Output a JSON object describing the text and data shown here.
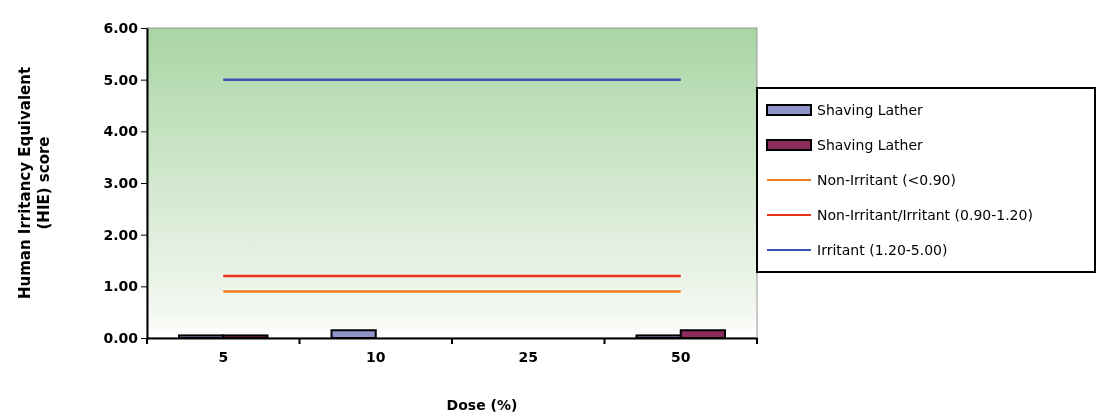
{
  "chart_data": {
    "type": "bar",
    "xlabel": "Dose (%)",
    "ylabel": "Human Irritancy Equivalent (HIE) score",
    "categories": [
      "5",
      "10",
      "25",
      "50"
    ],
    "series": [
      {
        "name": "Shaving Lather",
        "color": "#8f94c8",
        "values": [
          0.05,
          0.15,
          0,
          0.05
        ]
      },
      {
        "name": "Shaving Lather",
        "color": "#8b2a5c",
        "values": [
          0.05,
          0,
          0,
          0.15
        ]
      },
      {
        "name": "Non-Irritant (<0.90)",
        "type": "line",
        "color": "#f47a20",
        "values": [
          0.9,
          0.9,
          0.9,
          0.9
        ]
      },
      {
        "name": "Non-Irritant/Irritant (0.90-1.20)",
        "type": "line",
        "color": "#e8321e",
        "values": [
          1.2,
          1.2,
          1.2,
          1.2
        ]
      },
      {
        "name": "Irritant (1.20-5.00)",
        "type": "line",
        "color": "#3b4fb5",
        "values": [
          5,
          5,
          5,
          5
        ]
      }
    ],
    "ylim": [
      0,
      6
    ],
    "yticks": [
      {
        "value": 0,
        "label": "0.00"
      },
      {
        "value": 1,
        "label": "1.00"
      },
      {
        "value": 2,
        "label": "2.00"
      },
      {
        "value": 3,
        "label": "3.00"
      },
      {
        "value": 4,
        "label": "4.00"
      },
      {
        "value": 5,
        "label": "5.00"
      },
      {
        "value": 6,
        "label": "6.00"
      }
    ],
    "legend": "right",
    "grid": false
  }
}
